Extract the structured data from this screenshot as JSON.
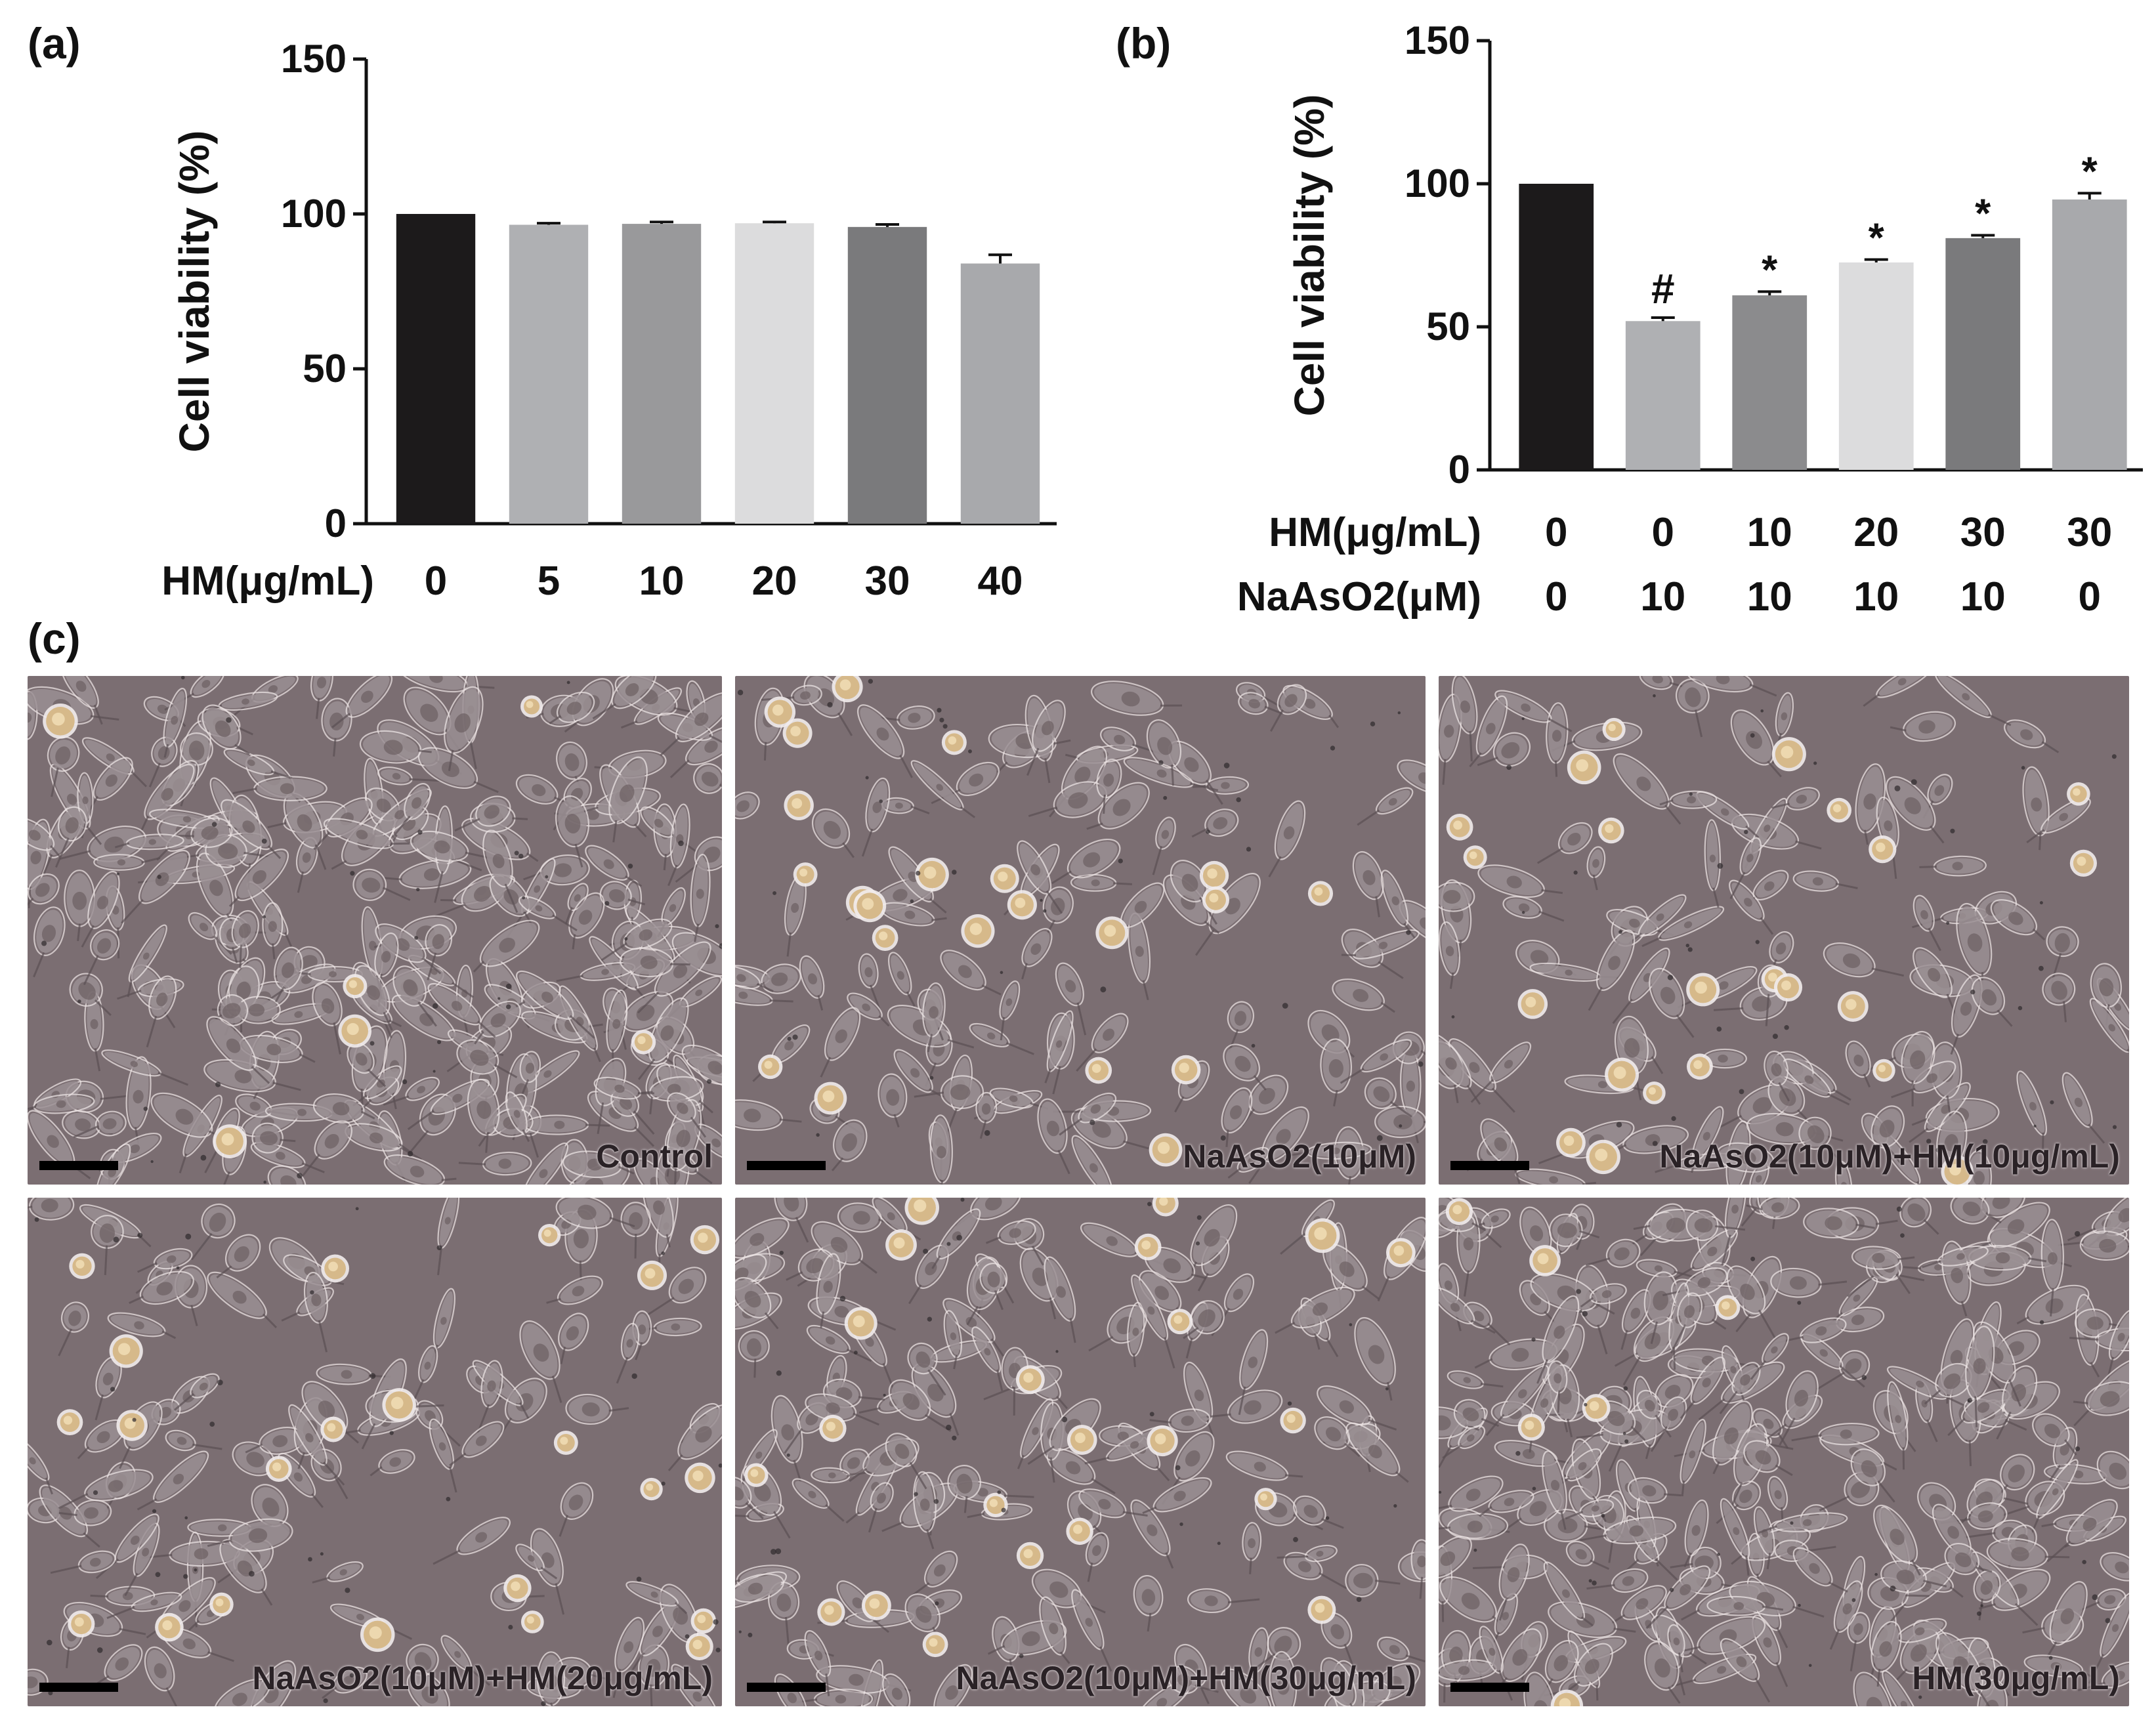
{
  "panels": {
    "a": "(a)",
    "b": "(b)",
    "c": "(c)"
  },
  "chart_data": [
    {
      "type": "bar",
      "panel": "(a)",
      "ylabel": "Cell viability (%)",
      "ylim": [
        0,
        150
      ],
      "yticks": [
        "0",
        "50",
        "100",
        "150"
      ],
      "row_labels": [
        "HM(μg/mL)"
      ],
      "categories": [
        "0",
        "5",
        "10",
        "20",
        "30",
        "40"
      ],
      "values": [
        100,
        96.5,
        96.8,
        97,
        95.8,
        84
      ],
      "errors": [
        0,
        0.5,
        0.6,
        0.4,
        0.8,
        2.8
      ],
      "colors": [
        "#1c1a1b",
        "#afb0b3",
        "#99999b",
        "#dcdcdd",
        "#7a7a7c",
        "#a8a9ac"
      ],
      "annotations": [
        "",
        "",
        "",
        "",
        "",
        ""
      ]
    },
    {
      "type": "bar",
      "panel": "(b)",
      "ylabel": "Cell viability (%)",
      "ylim": [
        0,
        150
      ],
      "yticks": [
        "0",
        "50",
        "100",
        "150"
      ],
      "row_labels": [
        "HM(μg/mL)",
        "NaAsO2(μM)"
      ],
      "categories": [
        "0",
        "0",
        "10",
        "20",
        "30",
        "30"
      ],
      "categories2": [
        "0",
        "10",
        "10",
        "10",
        "10",
        "0"
      ],
      "values": [
        100,
        52,
        61,
        72.5,
        81,
        94.5
      ],
      "errors": [
        0,
        1.2,
        1.3,
        1.0,
        1.0,
        2.2
      ],
      "colors": [
        "#1c1a1b",
        "#afb0b3",
        "#8b8b8d",
        "#dcdcdd",
        "#7a7a7c",
        "#a8a9ac"
      ],
      "annotations": [
        "",
        "#",
        "*",
        "*",
        "*",
        "*"
      ]
    }
  ],
  "micrographs": [
    {
      "label": "Control",
      "density": "high"
    },
    {
      "label": "NaAsO2(10μM)",
      "density": "low"
    },
    {
      "label": "NaAsO2(10μM)+HM(10μg/mL)",
      "density": "low"
    },
    {
      "label": "NaAsO2(10μM)+HM(20μg/mL)",
      "density": "low"
    },
    {
      "label": "NaAsO2(10μM)+HM(30μg/mL)",
      "density": "medium"
    },
    {
      "label": "HM(30μg/mL)",
      "density": "high"
    }
  ],
  "colors": {
    "micro_bg": "#7b6e72",
    "cell": "#9a8f93",
    "round_cell": "#d6b98a"
  }
}
